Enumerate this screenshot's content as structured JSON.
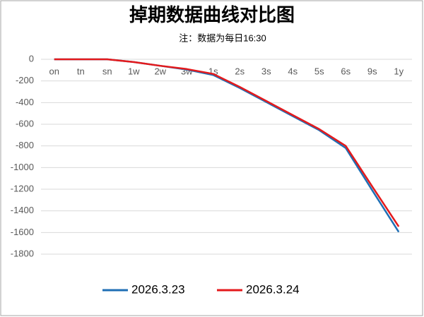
{
  "chart_data": {
    "type": "line",
    "title": "掉期数据曲线对比图",
    "subtitle": "注：数据为每日16:30",
    "categories": [
      "on",
      "tn",
      "sn",
      "1w",
      "2w",
      "3w",
      "1s",
      "2s",
      "3s",
      "4s",
      "5s",
      "6s",
      "9s",
      "1y"
    ],
    "series": [
      {
        "name": "2026.3.23",
        "color": "#1f6fb5",
        "values": [
          0,
          0,
          0,
          -25,
          -60,
          -95,
          -145,
          -265,
          -395,
          -525,
          -655,
          -820,
          -1210,
          -1595
        ]
      },
      {
        "name": "2026.3.24",
        "color": "#e41a1c",
        "values": [
          0,
          0,
          0,
          -25,
          -60,
          -90,
          -135,
          -255,
          -385,
          -515,
          -645,
          -800,
          -1175,
          -1545
        ]
      }
    ],
    "ylim": [
      -1800,
      0
    ],
    "yticks": [
      0,
      -200,
      -400,
      -600,
      -800,
      -1000,
      -1200,
      -1400,
      -1600,
      -1800
    ],
    "grid": true
  }
}
